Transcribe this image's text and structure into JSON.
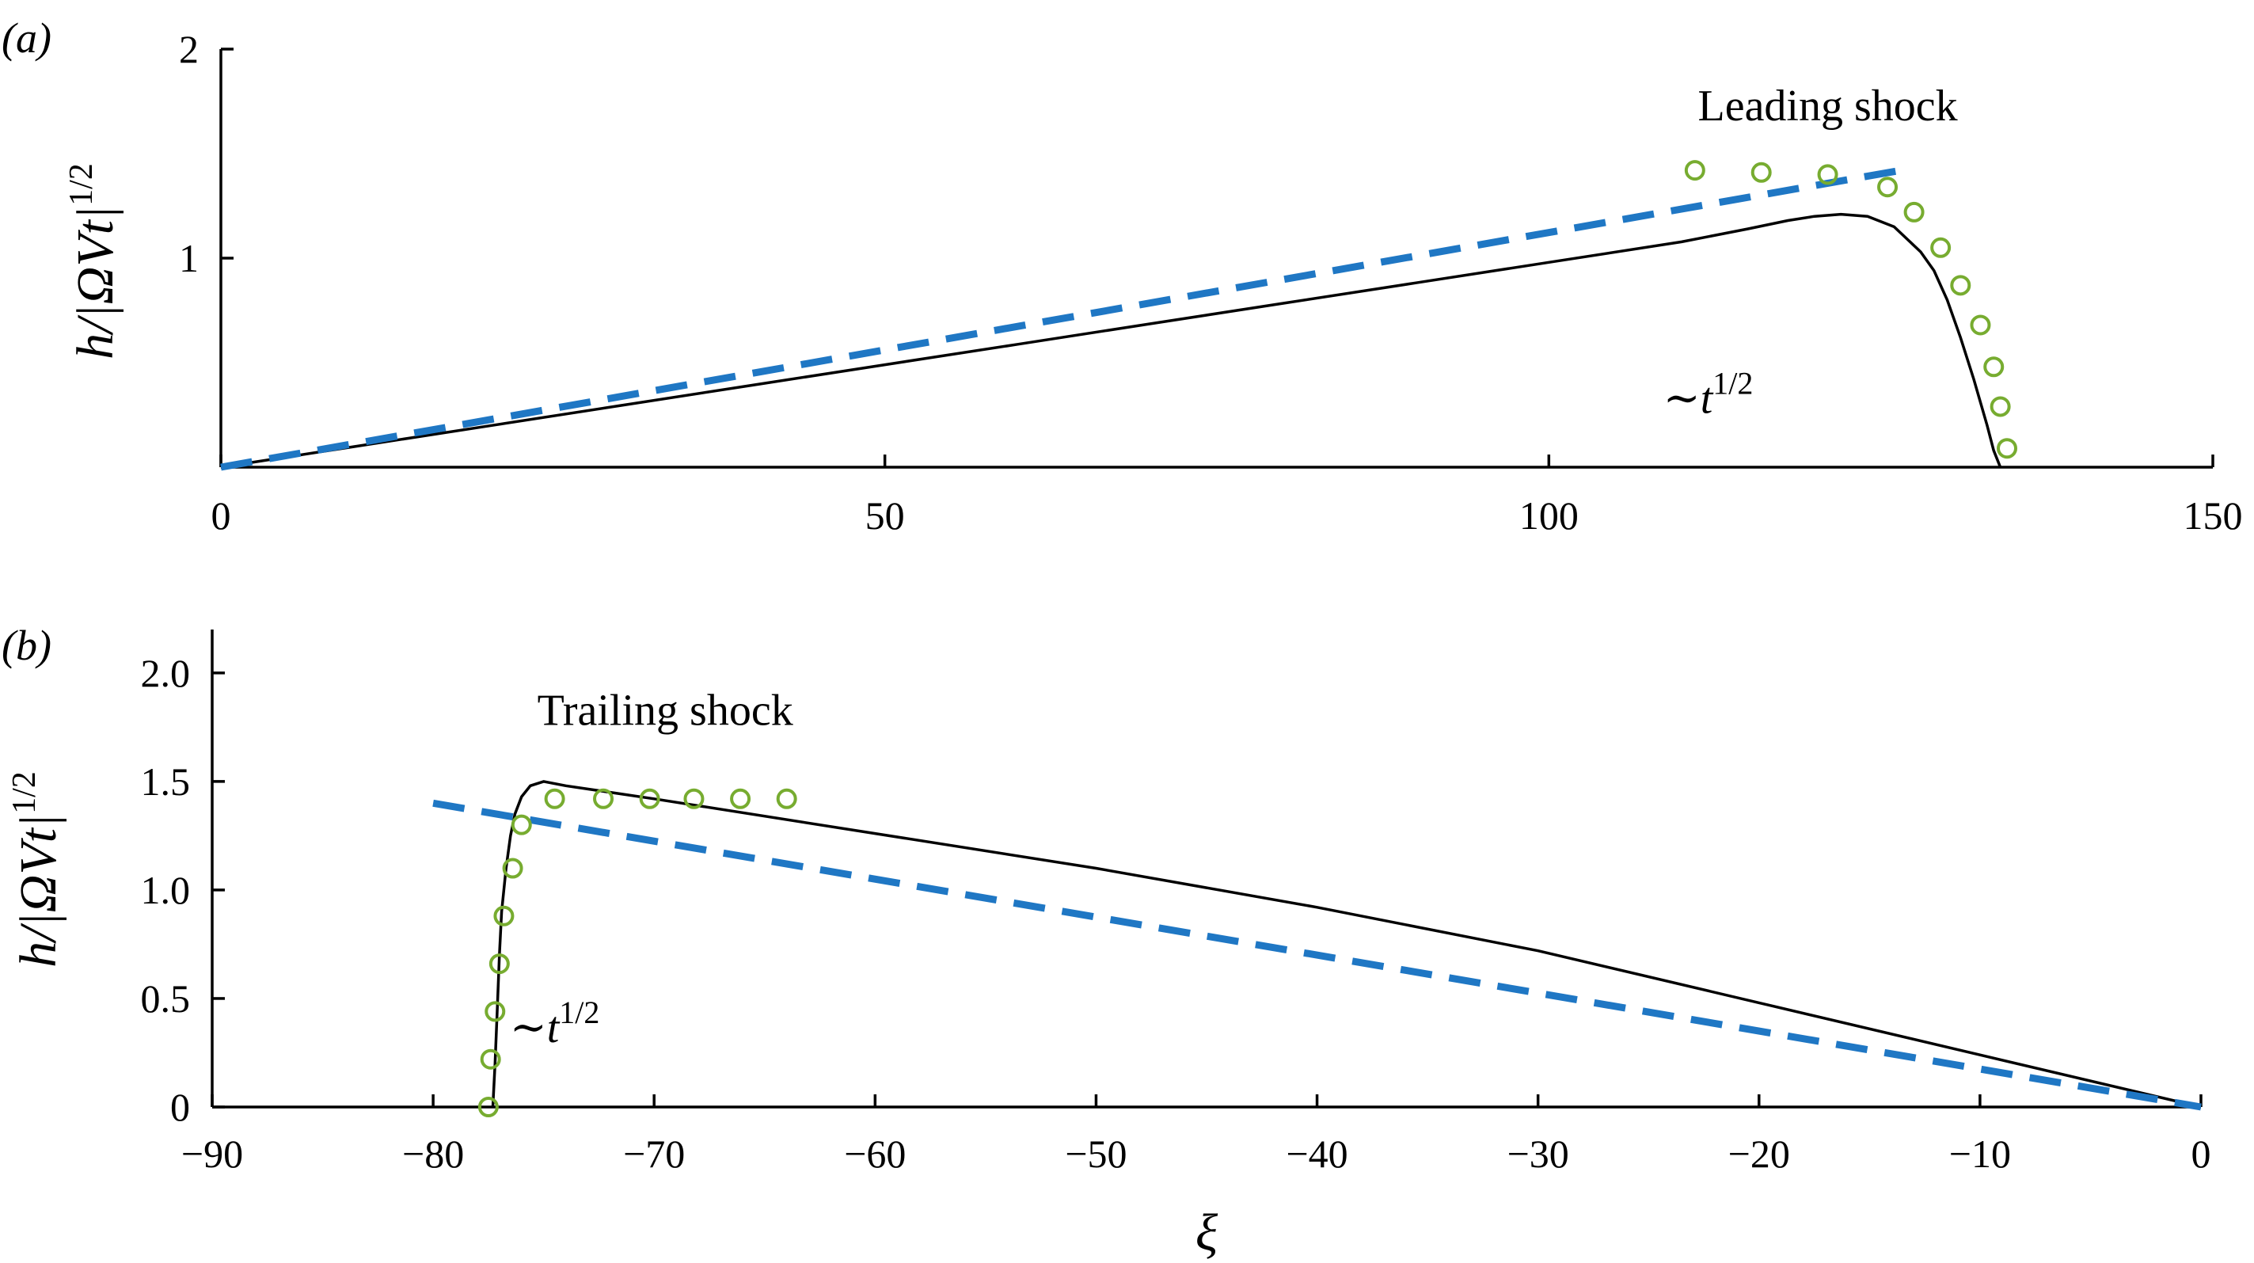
{
  "colors": {
    "simulation": "#000000",
    "dashed": "#1f77c4",
    "markers": "#77ac30"
  },
  "chart_data": [
    {
      "panel_label": "(a)",
      "type": "line",
      "ylabel": "h/|ΩVt|^1/2",
      "ylabel_base": "h/|ΩVt|",
      "ylabel_sup": "1/2",
      "xlabel": "",
      "xlim": [
        0,
        150
      ],
      "ylim": [
        0,
        2
      ],
      "x_ticks": [
        "0",
        "50",
        "100",
        "150"
      ],
      "y_ticks": [
        "1",
        "2"
      ],
      "annotations": [
        {
          "text": "Leading shock",
          "x": 121,
          "y": 1.66
        },
        {
          "text": "∼t",
          "sup": "1/2",
          "x": 112,
          "y": 0.26
        }
      ],
      "series": [
        {
          "style": "solid",
          "x": [
            0,
            10,
            20,
            30,
            40,
            50,
            60,
            70,
            80,
            90,
            100,
            110,
            115,
            118,
            120,
            122,
            124,
            126,
            128,
            129,
            130,
            131,
            132,
            133,
            133.5,
            134
          ],
          "y": [
            0,
            0.098,
            0.196,
            0.294,
            0.392,
            0.49,
            0.588,
            0.686,
            0.784,
            0.882,
            0.98,
            1.078,
            1.14,
            1.18,
            1.2,
            1.21,
            1.2,
            1.15,
            1.03,
            0.94,
            0.8,
            0.62,
            0.42,
            0.2,
            0.08,
            0
          ]
        },
        {
          "style": "dashed",
          "x": [
            0,
            126.5
          ],
          "y": [
            0,
            1.42
          ]
        },
        {
          "style": "markers",
          "x": [
            111,
            116,
            121,
            125.5,
            127.5,
            129.5,
            131,
            132.5,
            133.5,
            134,
            134.5
          ],
          "y": [
            1.42,
            1.41,
            1.4,
            1.34,
            1.22,
            1.05,
            0.87,
            0.68,
            0.48,
            0.29,
            0.09
          ]
        }
      ]
    },
    {
      "panel_label": "(b)",
      "type": "line",
      "ylabel": "h/|ΩVt|^1/2",
      "ylabel_base": "h/|ΩVt|",
      "ylabel_sup": "1/2",
      "xlabel": "ξ",
      "xlim": [
        -90,
        0
      ],
      "ylim": [
        0,
        2.2
      ],
      "x_ticks": [
        "−90",
        "−80",
        "−70",
        "−60",
        "−50",
        "−40",
        "−30",
        "−20",
        "−10",
        "0"
      ],
      "y_ticks": [
        "0",
        "0.5",
        "1.0",
        "1.5",
        "2.0"
      ],
      "annotations": [
        {
          "text": "Trailing shock",
          "x": -69.5,
          "y": 1.76
        },
        {
          "text": "∼t",
          "sup": "1/2",
          "x": -74.5,
          "y": 0.3
        }
      ],
      "series": [
        {
          "style": "solid",
          "x": [
            -77.3,
            -77.2,
            -77.1,
            -77.0,
            -76.9,
            -76.7,
            -76.5,
            -76.3,
            -76.0,
            -75.6,
            -75.0,
            -74.0,
            -70,
            -60,
            -50,
            -40,
            -30,
            -20,
            -10,
            0
          ],
          "y": [
            0,
            0.2,
            0.45,
            0.7,
            0.9,
            1.1,
            1.25,
            1.35,
            1.43,
            1.48,
            1.5,
            1.48,
            1.42,
            1.26,
            1.1,
            0.92,
            0.72,
            0.48,
            0.24,
            0
          ]
        },
        {
          "style": "dashed",
          "x": [
            -80,
            0
          ],
          "y": [
            1.4,
            0
          ]
        },
        {
          "style": "markers",
          "x": [
            -77.5,
            -77.4,
            -77.2,
            -77.0,
            -76.8,
            -76.4,
            -76.0,
            -74.5,
            -72.3,
            -70.2,
            -68.2,
            -66.1,
            -64.0
          ],
          "y": [
            0,
            0.22,
            0.44,
            0.66,
            0.88,
            1.1,
            1.3,
            1.42,
            1.42,
            1.42,
            1.42,
            1.42,
            1.42
          ]
        }
      ]
    }
  ]
}
